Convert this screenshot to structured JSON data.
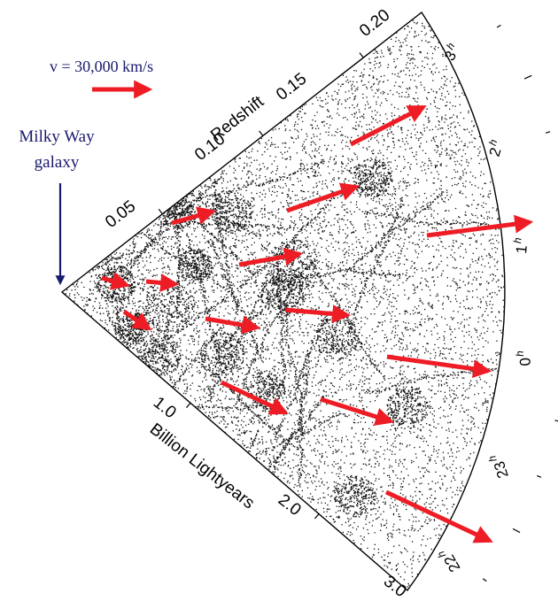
{
  "legend": {
    "velocity_label": "v = 30,000 km/s"
  },
  "observer": {
    "label_line1": "Milky Way",
    "label_line2": "galaxy"
  },
  "redshift_axis": {
    "title": "Redshift",
    "ticks": [
      "0.05",
      "0.10",
      "0.15",
      "0.20"
    ]
  },
  "distance_axis": {
    "title": "Billion Lightyears",
    "ticks": [
      "1.0",
      "2.0",
      "3.0"
    ]
  },
  "ra_axis": {
    "ticks": [
      {
        "hour": "3",
        "unit": "h"
      },
      {
        "hour": "2",
        "unit": "h"
      },
      {
        "hour": "1",
        "unit": "h"
      },
      {
        "hour": "0",
        "unit": "h"
      },
      {
        "hour": "23",
        "unit": "h"
      },
      {
        "hour": "22",
        "unit": "h"
      }
    ]
  },
  "colors": {
    "arrow": "#ee1c24",
    "observer_arrow": "#1a1a6e",
    "points": "#111111",
    "text_dark_blue": "#1a1a6e",
    "text": "#000000"
  }
}
